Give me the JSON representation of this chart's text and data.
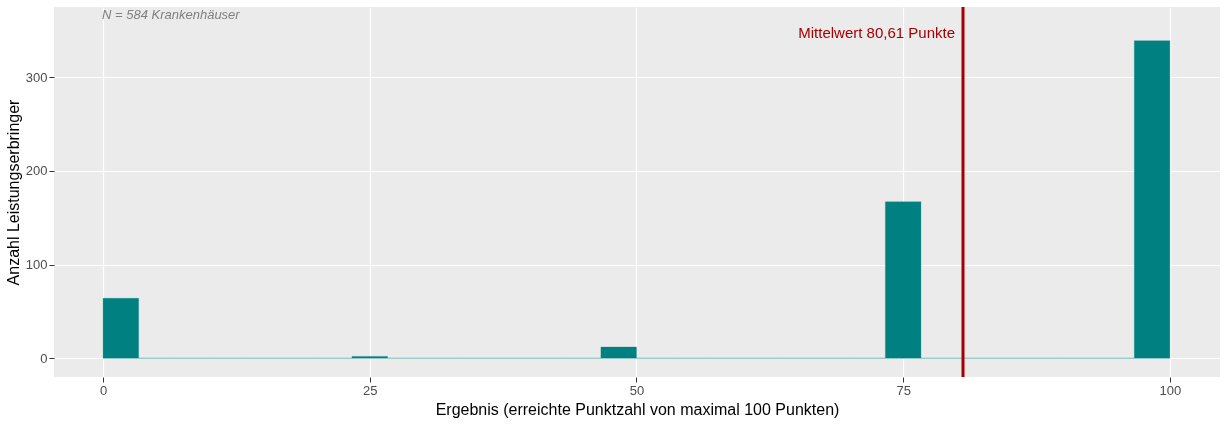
{
  "chart_data": {
    "type": "histogram",
    "bins": [
      0,
      3.333,
      6.667,
      10,
      13.333,
      16.667,
      20,
      23.333,
      26.667,
      30,
      33.333,
      36.667,
      40,
      43.333,
      46.667,
      50,
      53.333,
      56.667,
      60,
      63.333,
      66.667,
      70,
      73.333,
      76.667,
      80,
      83.333,
      86.667,
      90,
      93.333,
      96.667,
      100
    ],
    "values": [
      64,
      0,
      0,
      0,
      0,
      0,
      0,
      2,
      0,
      0,
      0,
      0,
      0,
      0,
      12,
      0,
      0,
      0,
      0,
      0,
      0,
      0,
      167,
      0,
      0,
      0,
      0,
      0,
      0,
      339
    ],
    "color": "#008080",
    "xlabel": "Ergebnis (erreichte Punktzahl von maximal 100 Punkten)",
    "ylabel": "Anzahl Leistungserbringer",
    "xlim": [
      -4.6,
      104.7
    ],
    "ylim": [
      -20,
      375
    ],
    "xticks": [
      0,
      25,
      50,
      75,
      100
    ],
    "yticks": [
      0,
      100,
      200,
      300
    ],
    "grid": true,
    "ref_lines": [
      {
        "axis": "x",
        "value": 80.61,
        "label": "Mittelwert 80,61 Punkte",
        "color": "#a50000"
      }
    ],
    "annotations": [
      "N = 584 Krankenhäuser"
    ]
  }
}
